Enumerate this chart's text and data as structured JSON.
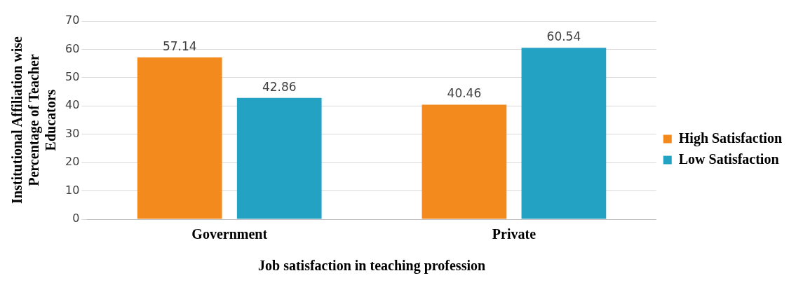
{
  "chart_data": {
    "type": "bar",
    "xlabel": "Job satisfaction in teaching profession",
    "ylabel": "Institutional Affiliation wise Percentage of Teacher Educators",
    "categories": [
      "Government",
      "Private"
    ],
    "series": [
      {
        "name": "High Satisfaction",
        "color": "#f28a1e",
        "values": [
          57.14,
          40.46
        ]
      },
      {
        "name": "Low Satisfaction",
        "color": "#23a2c4",
        "values": [
          42.86,
          60.54
        ]
      }
    ],
    "ylim": [
      0,
      70
    ],
    "yticks": [
      0,
      10,
      20,
      30,
      40,
      50,
      60,
      70
    ],
    "grid": "y",
    "legend": "right",
    "data_labels": true
  }
}
